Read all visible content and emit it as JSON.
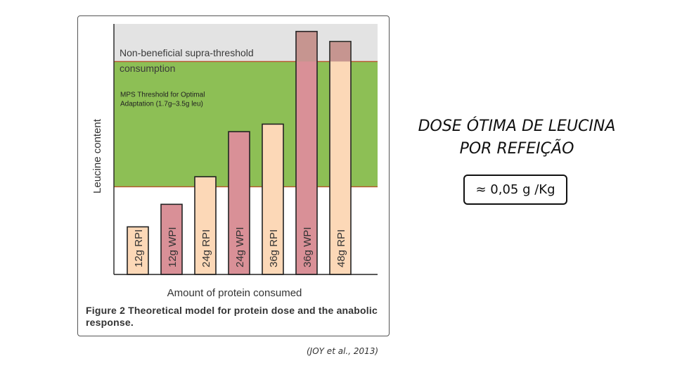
{
  "chart_data": {
    "type": "bar",
    "title": "",
    "xlabel": "Amount of protein consumed",
    "ylabel": "Leucine content",
    "ylim": [
      0,
      100
    ],
    "regions": [
      {
        "name": "Non-beneficial supra-threshold consumption",
        "label_lines": [
          "Non-beneficial supra-threshold",
          "consumption"
        ],
        "from": 85,
        "to": 100,
        "color": "#e3e3e3"
      },
      {
        "name": "MPS Threshold for Optimal Adaptation (1.7g–3.5g leu)",
        "label_lines": [
          "MPS Threshold for Optimal",
          "Adaptation (1.7g–3.5g leu)"
        ],
        "from": 35,
        "to": 85,
        "color": "#8dbf55"
      }
    ],
    "threshold_line_color": "#b5542c",
    "categories": [
      "12g RPI",
      "12g WPI",
      "24g RPI",
      "24g WPI",
      "36g RPI",
      "36g WPI",
      "48g RPI"
    ],
    "values": [
      19,
      28,
      39,
      57,
      60,
      85,
      85
    ],
    "tops": [
      19,
      28,
      39,
      57,
      60,
      97,
      93
    ],
    "bar_colors": [
      "#fcd8b7",
      "#d99097",
      "#fcd8b7",
      "#d99097",
      "#fcd8b7",
      "#d99097",
      "#fcd8b7"
    ],
    "overflow_color": "#c69590",
    "grid": false
  },
  "caption": {
    "figure_label": "Figure 2",
    "text": " Theoretical model for protein dose and the anabolic response."
  },
  "citation": "(JOY et al., 2013)",
  "callout": {
    "title_line1": "DOSE ÓTIMA DE LEUCINA",
    "title_line2": "POR REFEIÇÃO",
    "value": "≈ 0,05 g /Kg"
  }
}
